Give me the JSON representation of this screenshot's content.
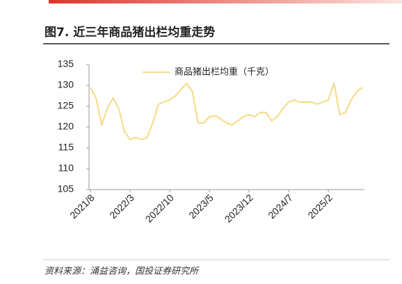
{
  "header": {
    "title": "图7. 近三年商品猪出栏均重走势"
  },
  "chart_data": {
    "type": "line",
    "categories": [
      "2021/8",
      null,
      null,
      null,
      null,
      null,
      null,
      "2022/3",
      null,
      null,
      null,
      null,
      null,
      null,
      "2022/10",
      null,
      null,
      null,
      null,
      null,
      null,
      "2023/5",
      null,
      null,
      null,
      null,
      null,
      null,
      "2023/12",
      null,
      null,
      null,
      null,
      null,
      null,
      "2024/7",
      null,
      null,
      null,
      null,
      null,
      null,
      "2025/2",
      null,
      null,
      null,
      null,
      null,
      null
    ],
    "series": [
      {
        "name": "商品猪出栏均重（千克）",
        "color": "#f7dc8c",
        "values": [
          129.5,
          127,
          120.5,
          124.5,
          127,
          124.5,
          119,
          117,
          117.5,
          117,
          117.5,
          121,
          125.5,
          126,
          126.5,
          127.5,
          129,
          130.5,
          128.5,
          121,
          121,
          122.5,
          122.7,
          122,
          121,
          120.5,
          121.5,
          122.5,
          123,
          122.5,
          123.5,
          123.5,
          121.5,
          122.5,
          124.5,
          126,
          126.5,
          126,
          126,
          126,
          125.5,
          126,
          126.5,
          130.5,
          123,
          123.5,
          126.5,
          128.5,
          129.5
        ]
      }
    ],
    "ylim": [
      105,
      135
    ],
    "yticks": [
      105,
      110,
      115,
      120,
      125,
      130,
      135
    ],
    "grid": false
  },
  "source": "资料来源：涌益咨询，国投证券研究所"
}
